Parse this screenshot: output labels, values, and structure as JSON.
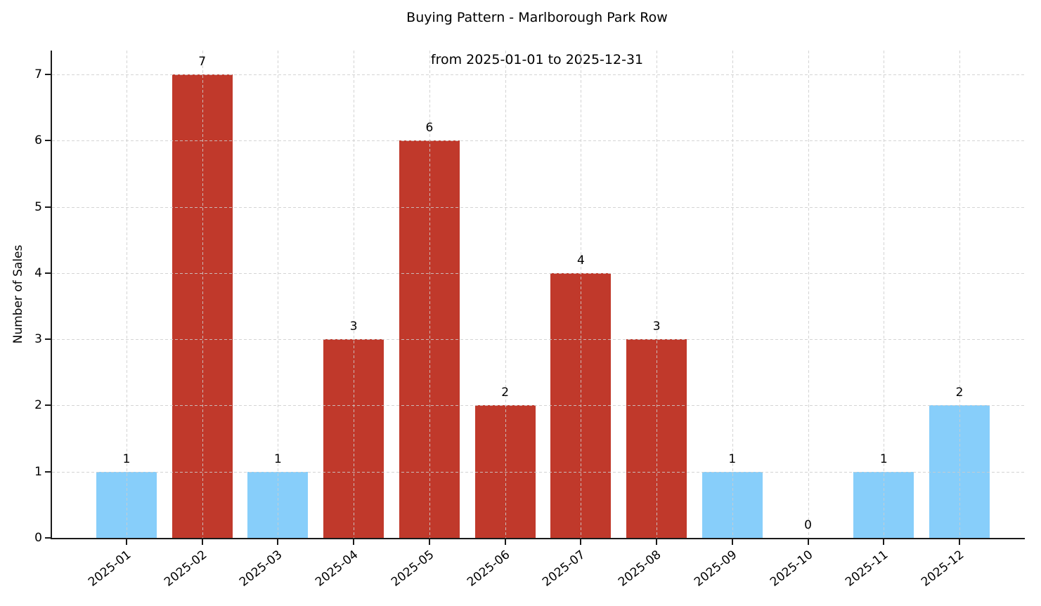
{
  "figure": {
    "title_line1": "Buying Pattern - Marlborough Park Row",
    "title_line2": "from 2025-01-01 to 2025-12-31"
  },
  "chart_data": {
    "type": "bar",
    "title": "Buying Pattern - Marlborough Park Row\nfrom 2025-01-01 to 2025-12-31",
    "xlabel": "",
    "ylabel": "Number of Sales",
    "categories": [
      "2025-01",
      "2025-02",
      "2025-03",
      "2025-04",
      "2025-05",
      "2025-06",
      "2025-07",
      "2025-08",
      "2025-09",
      "2025-10",
      "2025-11",
      "2025-12"
    ],
    "values": [
      1,
      7,
      1,
      3,
      6,
      2,
      4,
      3,
      1,
      0,
      1,
      2
    ],
    "bar_colors": [
      "#87CEFA",
      "#C0392B",
      "#87CEFA",
      "#C0392B",
      "#C0392B",
      "#C0392B",
      "#C0392B",
      "#C0392B",
      "#87CEFA",
      null,
      "#87CEFA",
      "#87CEFA"
    ],
    "value_labels_shown": true,
    "yticks": [
      0,
      1,
      2,
      3,
      4,
      5,
      6,
      7
    ],
    "ylim": [
      0,
      7.36
    ],
    "grid": true,
    "grid_style": "dashed",
    "legend": "none",
    "palette": {
      "blue_bar": "#87CEFA",
      "red_bar": "#C0392B",
      "grid": "#cdcdcd",
      "axis": "#1a1a1a",
      "text": "#000000",
      "background": "#ffffff"
    }
  }
}
